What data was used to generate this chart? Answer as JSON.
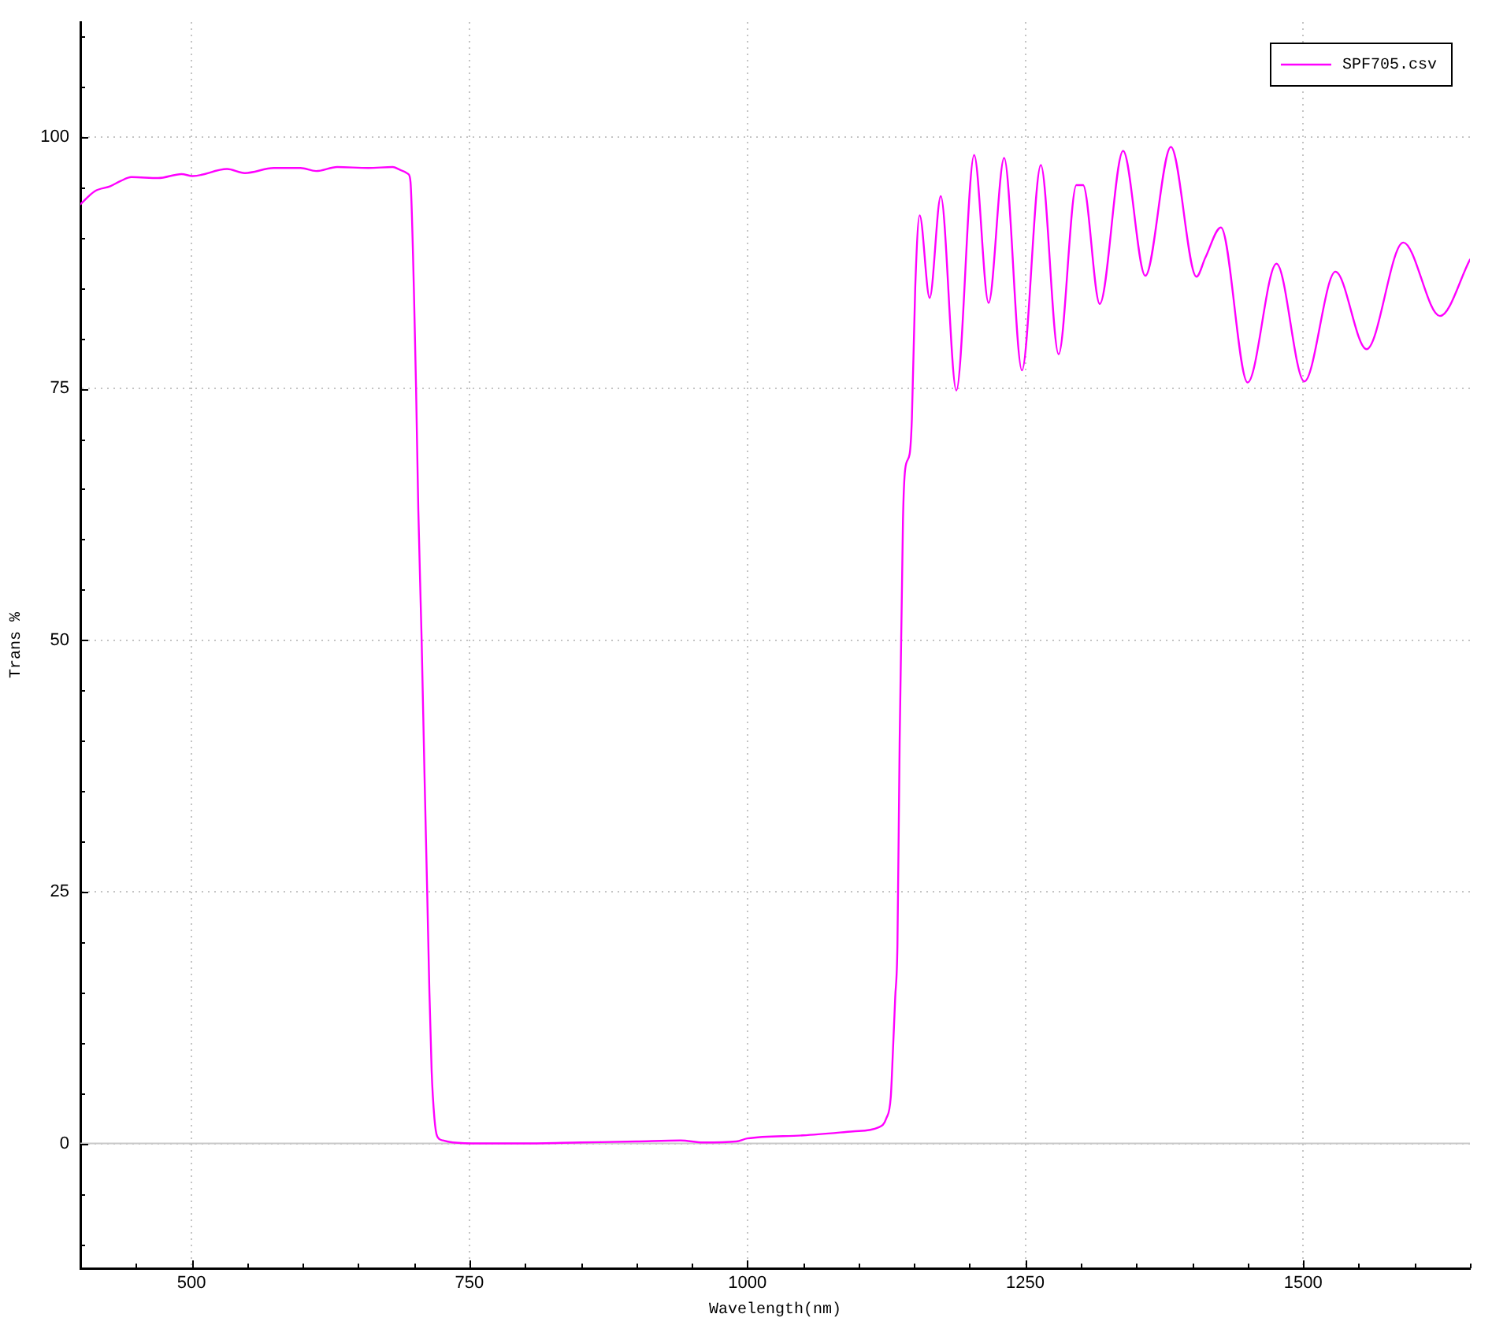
{
  "chart_data": {
    "type": "line",
    "xlabel": "Wavelength(nm)",
    "ylabel": "Trans %",
    "xlim": [
      400,
      1650
    ],
    "ylim": [
      -12.4,
      111.4
    ],
    "xticks": [
      {
        "value": 450,
        "label": null
      },
      500,
      {
        "value": 550,
        "label": null
      },
      {
        "value": 600,
        "label": null
      },
      {
        "value": 650,
        "label": null
      },
      {
        "value": 700,
        "label": null
      },
      750,
      {
        "value": 800,
        "label": null
      },
      {
        "value": 850,
        "label": null
      },
      {
        "value": 900,
        "label": null
      },
      {
        "value": 950,
        "label": null
      },
      1000,
      {
        "value": 1050,
        "label": null
      },
      {
        "value": 1100,
        "label": null
      },
      {
        "value": 1150,
        "label": null
      },
      {
        "value": 1200,
        "label": null
      },
      1250,
      {
        "value": 1300,
        "label": null
      },
      {
        "value": 1350,
        "label": null
      },
      {
        "value": 1400,
        "label": null
      },
      {
        "value": 1450,
        "label": null
      },
      1500,
      {
        "value": 1550,
        "label": null
      },
      {
        "value": 1600,
        "label": null
      },
      {
        "value": 1650,
        "label": null
      }
    ],
    "yticks": [
      {
        "value": -10,
        "label": null
      },
      {
        "value": -5,
        "label": null
      },
      0,
      {
        "value": 5,
        "label": null
      },
      {
        "value": 10,
        "label": null
      },
      {
        "value": 15,
        "label": null
      },
      {
        "value": 20,
        "label": null
      },
      25,
      {
        "value": 30,
        "label": null
      },
      {
        "value": 35,
        "label": null
      },
      {
        "value": 40,
        "label": null
      },
      {
        "value": 45,
        "label": null
      },
      50,
      {
        "value": 55,
        "label": null
      },
      {
        "value": 60,
        "label": null
      },
      {
        "value": 65,
        "label": null
      },
      {
        "value": 70,
        "label": null
      },
      75,
      {
        "value": 80,
        "label": null
      },
      {
        "value": 85,
        "label": null
      },
      {
        "value": 90,
        "label": null
      },
      {
        "value": 95,
        "label": null
      },
      100,
      {
        "value": 105,
        "label": null
      },
      {
        "value": 110,
        "label": null
      }
    ],
    "grid": true,
    "legend": "top right",
    "marker": "none",
    "ref_lines": [
      {
        "axis": "y",
        "value": 0,
        "color": "#c8c8c8"
      }
    ],
    "series": [
      {
        "name": "SPF705.csv",
        "color": "#ff00ff",
        "x": [
          400,
          413,
          427,
          436,
          446,
          470,
          491,
          501,
          532,
          548,
          574,
          598,
          612,
          631,
          659,
          681,
          688,
          695,
          697,
          700,
          702,
          704,
          707,
          709.5,
          712,
          714,
          716,
          718.5,
          721,
          726,
          735,
          760,
          800,
          850,
          900,
          940,
          960,
          990,
          1000,
          1050,
          1095,
          1118,
          1125,
          1129,
          1131,
          1133,
          1135,
          1137,
          1140,
          1142,
          1146,
          1148,
          1151,
          1155,
          1164,
          1174,
          1188,
          1204,
          1217,
          1231,
          1247,
          1264,
          1280,
          1296,
          1302,
          1317,
          1338,
          1358,
          1381,
          1404,
          1412,
          1426,
          1450,
          1476,
          1501,
          1529,
          1557,
          1590,
          1623,
          1650
        ],
        "values": [
          93.3,
          94.6,
          95.1,
          95.6,
          96.0,
          95.9,
          96.3,
          96.1,
          96.8,
          96.4,
          96.9,
          96.9,
          96.6,
          97.0,
          96.9,
          97.0,
          96.7,
          96.3,
          95.5,
          85,
          75,
          63,
          50,
          37,
          25,
          15,
          7.2,
          2.5,
          0.7,
          0.3,
          0.1,
          0,
          0,
          0.1,
          0.2,
          0.3,
          0.1,
          0.2,
          0.5,
          0.8,
          1.2,
          1.6,
          2.5,
          4.6,
          9.3,
          14.5,
          19.7,
          40,
          62,
          67,
          68.5,
          72,
          85,
          92.2,
          84.0,
          94.1,
          74.8,
          98.2,
          83.5,
          97.9,
          76.8,
          97.2,
          78.4,
          95.2,
          95.2,
          83.4,
          98.6,
          86.2,
          99.0,
          86.1,
          88.0,
          91.0,
          75.6,
          87.4,
          75.7,
          86.6,
          78.9,
          89.5,
          82.2,
          87.8
        ]
      }
    ]
  }
}
